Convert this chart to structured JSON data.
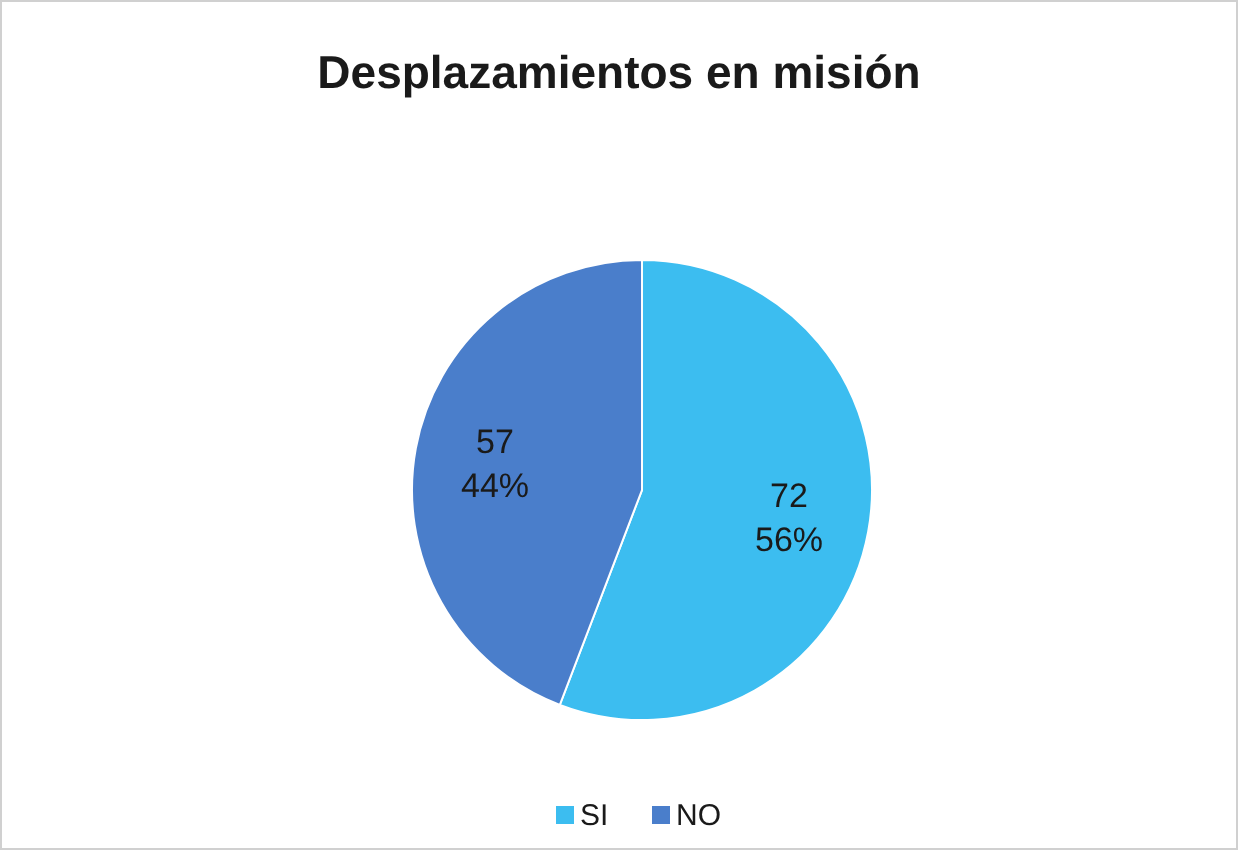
{
  "chart_data": {
    "type": "pie",
    "title": "Desplazamientos en misión",
    "categories": [
      "SI",
      "NO"
    ],
    "values": [
      72,
      57
    ],
    "colors": [
      "#3cbdf0",
      "#4a7ecb"
    ],
    "value_labels": [
      "72\n56%",
      "57\n44%"
    ],
    "legend": "bottom"
  }
}
